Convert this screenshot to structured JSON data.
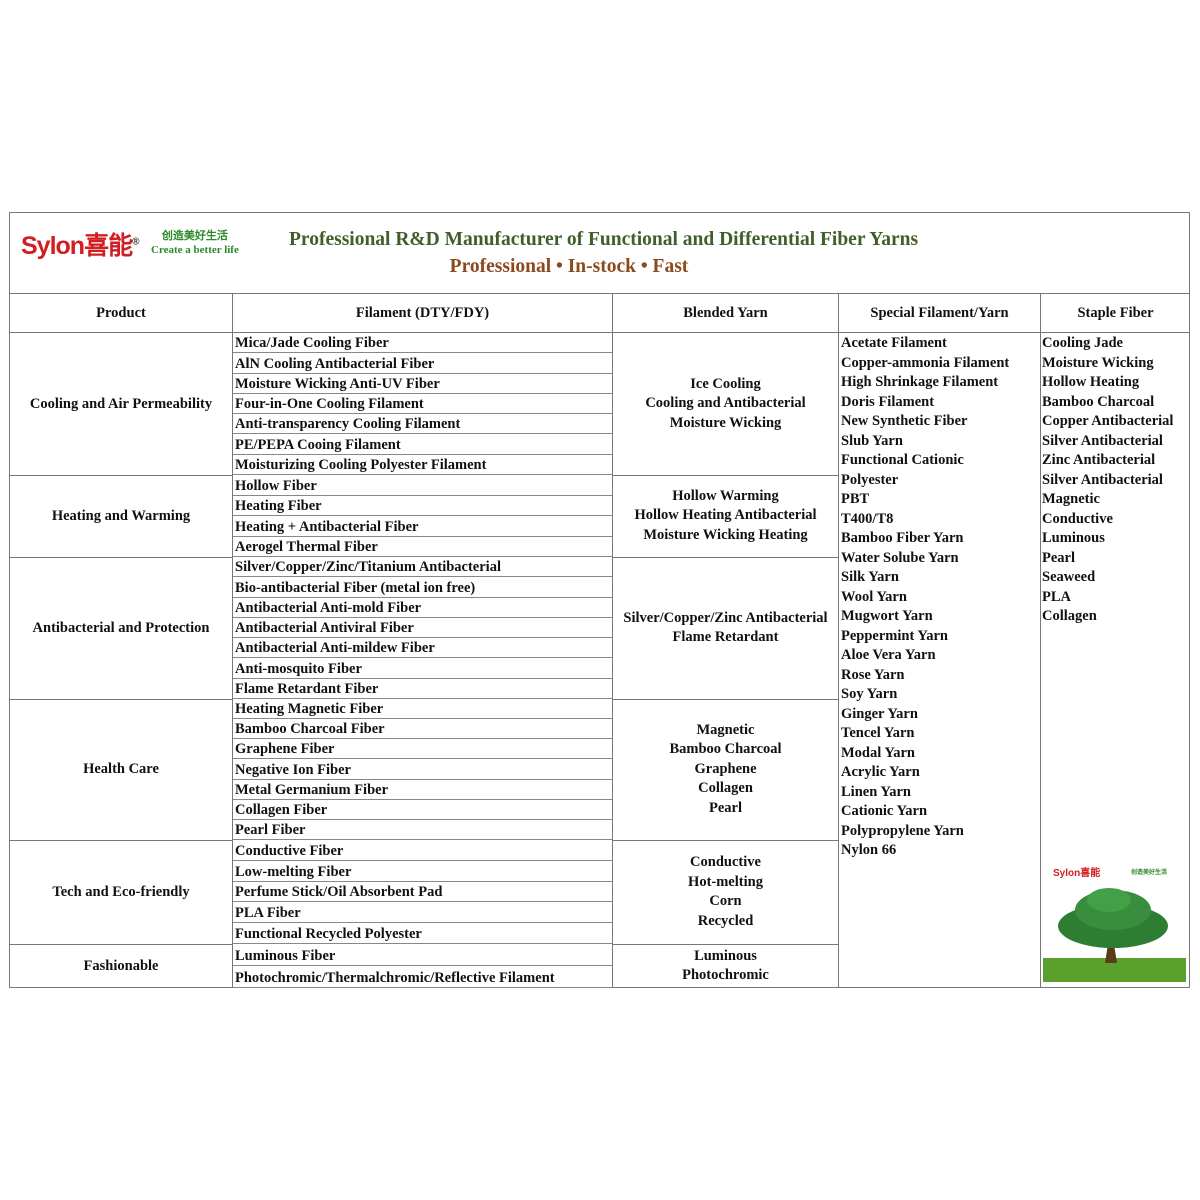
{
  "header": {
    "logo": "Sylon喜能",
    "logo_mark": "®",
    "slogan_cn": "创造美好生活",
    "slogan_en": "Create a better life",
    "title": "Professional R&D Manufacturer of Functional and Differential Fiber Yarns",
    "subtitle": "Professional • In-stock • Fast"
  },
  "columns": [
    "Product",
    "Filament (DTY/FDY)",
    "Blended Yarn",
    "Special Filament/Yarn",
    "Staple Fiber"
  ],
  "categories": [
    {
      "name": "Cooling and Air Permeability",
      "filament": [
        "Mica/Jade Cooling Fiber",
        "AlN Cooling Antibacterial Fiber",
        "Moisture Wicking Anti-UV Fiber",
        "Four-in-One Cooling Filament",
        "Anti-transparency Cooling Filament",
        "PE/PEPA Cooing Filament",
        "Moisturizing Cooling Polyester Filament"
      ],
      "blended": [
        "Ice Cooling",
        "Cooling and Antibacterial",
        "Moisture Wicking"
      ]
    },
    {
      "name": "Heating and Warming",
      "filament": [
        "Hollow Fiber",
        "Heating Fiber",
        "Heating + Antibacterial Fiber",
        "Aerogel Thermal Fiber"
      ],
      "blended": [
        "Hollow Warming",
        "Hollow Heating Antibacterial",
        "Moisture Wicking Heating"
      ]
    },
    {
      "name": "Antibacterial and Protection",
      "filament": [
        "Silver/Copper/Zinc/Titanium Antibacterial",
        "Bio-antibacterial Fiber (metal ion free)",
        "Antibacterial Anti-mold Fiber",
        "Antibacterial Antiviral Fiber",
        "Antibacterial Anti-mildew Fiber",
        "Anti-mosquito Fiber",
        "Flame Retardant Fiber"
      ],
      "blended": [
        "Silver/Copper/Zinc Antibacterial",
        "Flame Retardant"
      ]
    },
    {
      "name": "Health Care",
      "filament": [
        "Heating Magnetic Fiber",
        "Bamboo Charcoal Fiber",
        "Graphene Fiber",
        "Negative Ion Fiber",
        "Metal Germanium Fiber",
        "Collagen Fiber",
        "Pearl Fiber"
      ],
      "blended": [
        "Magnetic",
        "Bamboo Charcoal",
        "Graphene",
        "Collagen",
        "Pearl"
      ]
    },
    {
      "name": "Tech and Eco-friendly",
      "filament": [
        "Conductive Fiber",
        "Low-melting Fiber",
        "Perfume Stick/Oil Absorbent Pad",
        "PLA Fiber",
        "Functional Recycled Polyester"
      ],
      "blended": [
        "Conductive",
        "Hot-melting",
        "Corn",
        "Recycled"
      ]
    },
    {
      "name": "Fashionable",
      "filament": [
        "Luminous Fiber",
        "Photochromic/Thermalchromic/Reflective Filament"
      ],
      "blended": [
        "Luminous",
        "Photochromic"
      ]
    }
  ],
  "special": [
    "Acetate Filament",
    "Copper-ammonia Filament",
    "High Shrinkage Filament",
    "Doris Filament",
    "New Synthetic Fiber",
    "Slub Yarn",
    "Functional Cationic",
    "Polyester",
    "PBT",
    "T400/T8",
    "Bamboo Fiber Yarn",
    "Water Solube Yarn",
    "Silk Yarn",
    "Wool Yarn",
    "Mugwort Yarn",
    "Peppermint Yarn",
    "Aloe Vera Yarn",
    "Rose Yarn",
    "Soy Yarn",
    "Ginger Yarn",
    "Tencel Yarn",
    "Modal Yarn",
    "Acrylic Yarn",
    "Linen Yarn",
    "Cationic Yarn",
    "Polypropylene Yarn",
    "Nylon 66"
  ],
  "staple": [
    "Cooling Jade",
    "Moisture Wicking",
    "Hollow Heating",
    "Bamboo Charcoal",
    "Copper Antibacterial",
    "Silver Antibacterial",
    "Zinc Antibacterial",
    "Silver Antibacterial",
    "Magnetic",
    "Conductive",
    "Luminous",
    "Pearl",
    "Seaweed",
    "PLA",
    "Collagen"
  ],
  "colors": {
    "brand_red": "#d21e22",
    "title_green": "#3f5f2a",
    "subtitle_brown": "#8b4a1c"
  }
}
